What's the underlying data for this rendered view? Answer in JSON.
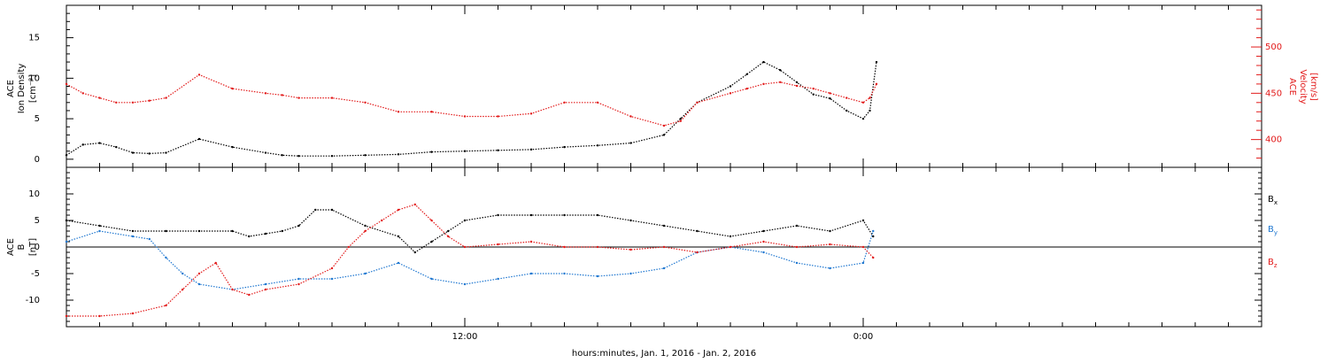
{
  "chart_data": [
    {
      "type": "scatter",
      "panel": "ion-density-velocity",
      "xlabel": "hours:minutes, Jan.  1, 2016 - Jan.  2, 2016",
      "x_unit": "hours since 2016-01-01 00:00",
      "xlim": [
        0,
        36
      ],
      "x_ticks": [
        {
          "value": 12,
          "label": "12:00"
        },
        {
          "value": 24,
          "label": "0:00"
        }
      ],
      "left_axis": {
        "label": [
          "ACE",
          "Ion Density",
          "[cm⁻³]"
        ],
        "ylim": [
          -1,
          19
        ],
        "ticks": [
          0,
          5,
          10,
          15
        ],
        "color": "#000000"
      },
      "right_axis": {
        "label": [
          "ACE",
          "Velocity",
          "[km/s]"
        ],
        "ylim": [
          370,
          545
        ],
        "ticks": [
          400,
          450,
          500
        ],
        "color": "#e21a1a"
      },
      "series": [
        {
          "name": "",
          "axis": "left",
          "color": "#000000",
          "x": [
            0,
            0.5,
            1,
            1.5,
            2,
            2.5,
            3,
            4,
            5,
            6,
            6.5,
            7,
            8,
            9,
            10,
            11,
            12,
            13,
            14,
            15,
            16,
            17,
            18,
            18.5,
            19,
            20,
            20.5,
            21,
            21.5,
            22,
            22.5,
            23,
            23.5,
            24,
            24.2,
            24.4
          ],
          "y": [
            0.5,
            1.8,
            2,
            1.5,
            0.8,
            0.7,
            0.8,
            2.5,
            1.5,
            0.8,
            0.5,
            0.4,
            0.4,
            0.5,
            0.6,
            0.9,
            1.0,
            1.1,
            1.2,
            1.5,
            1.7,
            2.0,
            3.0,
            5.0,
            7.0,
            9.0,
            10.5,
            12.0,
            11.0,
            9.5,
            8.0,
            7.5,
            6.0,
            5.0,
            6.0,
            12.0
          ]
        },
        {
          "name": "",
          "axis": "right",
          "color": "#e21a1a",
          "x": [
            0,
            0.5,
            1,
            1.5,
            2,
            2.5,
            3,
            4,
            5,
            6,
            6.5,
            7,
            8,
            9,
            10,
            11,
            12,
            13,
            14,
            15,
            16,
            17,
            18,
            18.5,
            19,
            20,
            20.5,
            21,
            21.5,
            22,
            22.5,
            23,
            23.5,
            24,
            24.2,
            24.4
          ],
          "y": [
            460,
            450,
            445,
            440,
            440,
            442,
            445,
            470,
            455,
            450,
            448,
            445,
            445,
            440,
            430,
            430,
            425,
            425,
            428,
            440,
            440,
            425,
            415,
            420,
            440,
            450,
            455,
            460,
            462,
            458,
            455,
            450,
            445,
            440,
            445,
            460
          ]
        }
      ]
    },
    {
      "type": "scatter",
      "panel": "magnetic-field",
      "xlim": [
        0,
        36
      ],
      "x_ticks": [
        {
          "value": 12,
          "label": "12:00"
        },
        {
          "value": 24,
          "label": "0:00"
        }
      ],
      "left_axis": {
        "label": [
          "ACE",
          "B",
          "[nT]"
        ],
        "ylim": [
          -15,
          15
        ],
        "ticks": [
          -10,
          -5,
          0,
          5,
          10
        ]
      },
      "zero_line": true,
      "series": [
        {
          "name": "Bx",
          "color": "#000000",
          "x": [
            0,
            1,
            2,
            3,
            4,
            5,
            5.5,
            6,
            6.5,
            7,
            7.5,
            8,
            9,
            10,
            10.5,
            11,
            11.5,
            12,
            13,
            14,
            15,
            16,
            17,
            18,
            19,
            20,
            21,
            22,
            23,
            24,
            24.3
          ],
          "y": [
            5,
            4,
            3,
            3,
            3,
            3,
            2,
            2.5,
            3,
            4,
            7,
            7,
            4,
            2,
            -1,
            1,
            3,
            5,
            6,
            6,
            6,
            6,
            5,
            4,
            3,
            2,
            3,
            4,
            3,
            5,
            2
          ]
        },
        {
          "name": "By",
          "color": "#1f77d0",
          "x": [
            0,
            1,
            2,
            2.5,
            3,
            3.5,
            4,
            5,
            6,
            7,
            8,
            9,
            10,
            11,
            12,
            13,
            14,
            15,
            16,
            17,
            18,
            19,
            20,
            21,
            22,
            23,
            24,
            24.3
          ],
          "y": [
            1,
            3,
            2,
            1.5,
            -2,
            -5,
            -7,
            -8,
            -7,
            -6,
            -6,
            -5,
            -3,
            -6,
            -7,
            -6,
            -5,
            -5,
            -5.5,
            -5,
            -4,
            -1,
            0,
            -1,
            -3,
            -4,
            -3,
            3
          ]
        },
        {
          "name": "Bz",
          "color": "#e21a1a",
          "x": [
            0,
            1,
            2,
            3,
            3.5,
            4,
            4.5,
            5,
            5.5,
            6,
            7,
            8,
            8.5,
            9,
            9.5,
            10,
            10.5,
            11,
            11.5,
            12,
            13,
            14,
            15,
            16,
            17,
            18,
            19,
            20,
            21,
            22,
            23,
            24,
            24.3
          ],
          "y": [
            -13,
            -13,
            -12.5,
            -11,
            -8,
            -5,
            -3,
            -8,
            -9,
            -8,
            -7,
            -4,
            0,
            3,
            5,
            7,
            8,
            5,
            2,
            0,
            0.5,
            1,
            0,
            0,
            -0.5,
            0,
            -1,
            0,
            1,
            0,
            0.5,
            0,
            -2
          ]
        }
      ]
    }
  ]
}
